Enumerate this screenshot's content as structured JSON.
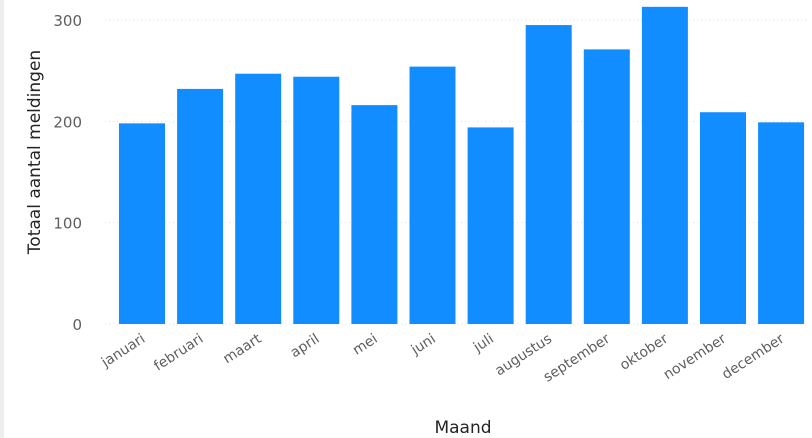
{
  "chart_data": {
    "type": "bar",
    "categories": [
      "januari",
      "februari",
      "maart",
      "april",
      "mei",
      "juni",
      "juli",
      "augustus",
      "september",
      "oktober",
      "november",
      "december"
    ],
    "values": [
      198,
      232,
      247,
      244,
      216,
      254,
      194,
      295,
      271,
      313,
      209,
      199
    ],
    "title": "",
    "xlabel": "Maand",
    "ylabel": "Totaal aantal meldingen",
    "ylim": [
      0,
      300
    ],
    "yticks": [
      0,
      100,
      200,
      300
    ],
    "grid": true,
    "legend": "none",
    "colors": {
      "bar": "#118DFF",
      "grid": "#E3E3E3",
      "tick_text": "#605E5C",
      "axis_title": "#252423"
    }
  }
}
